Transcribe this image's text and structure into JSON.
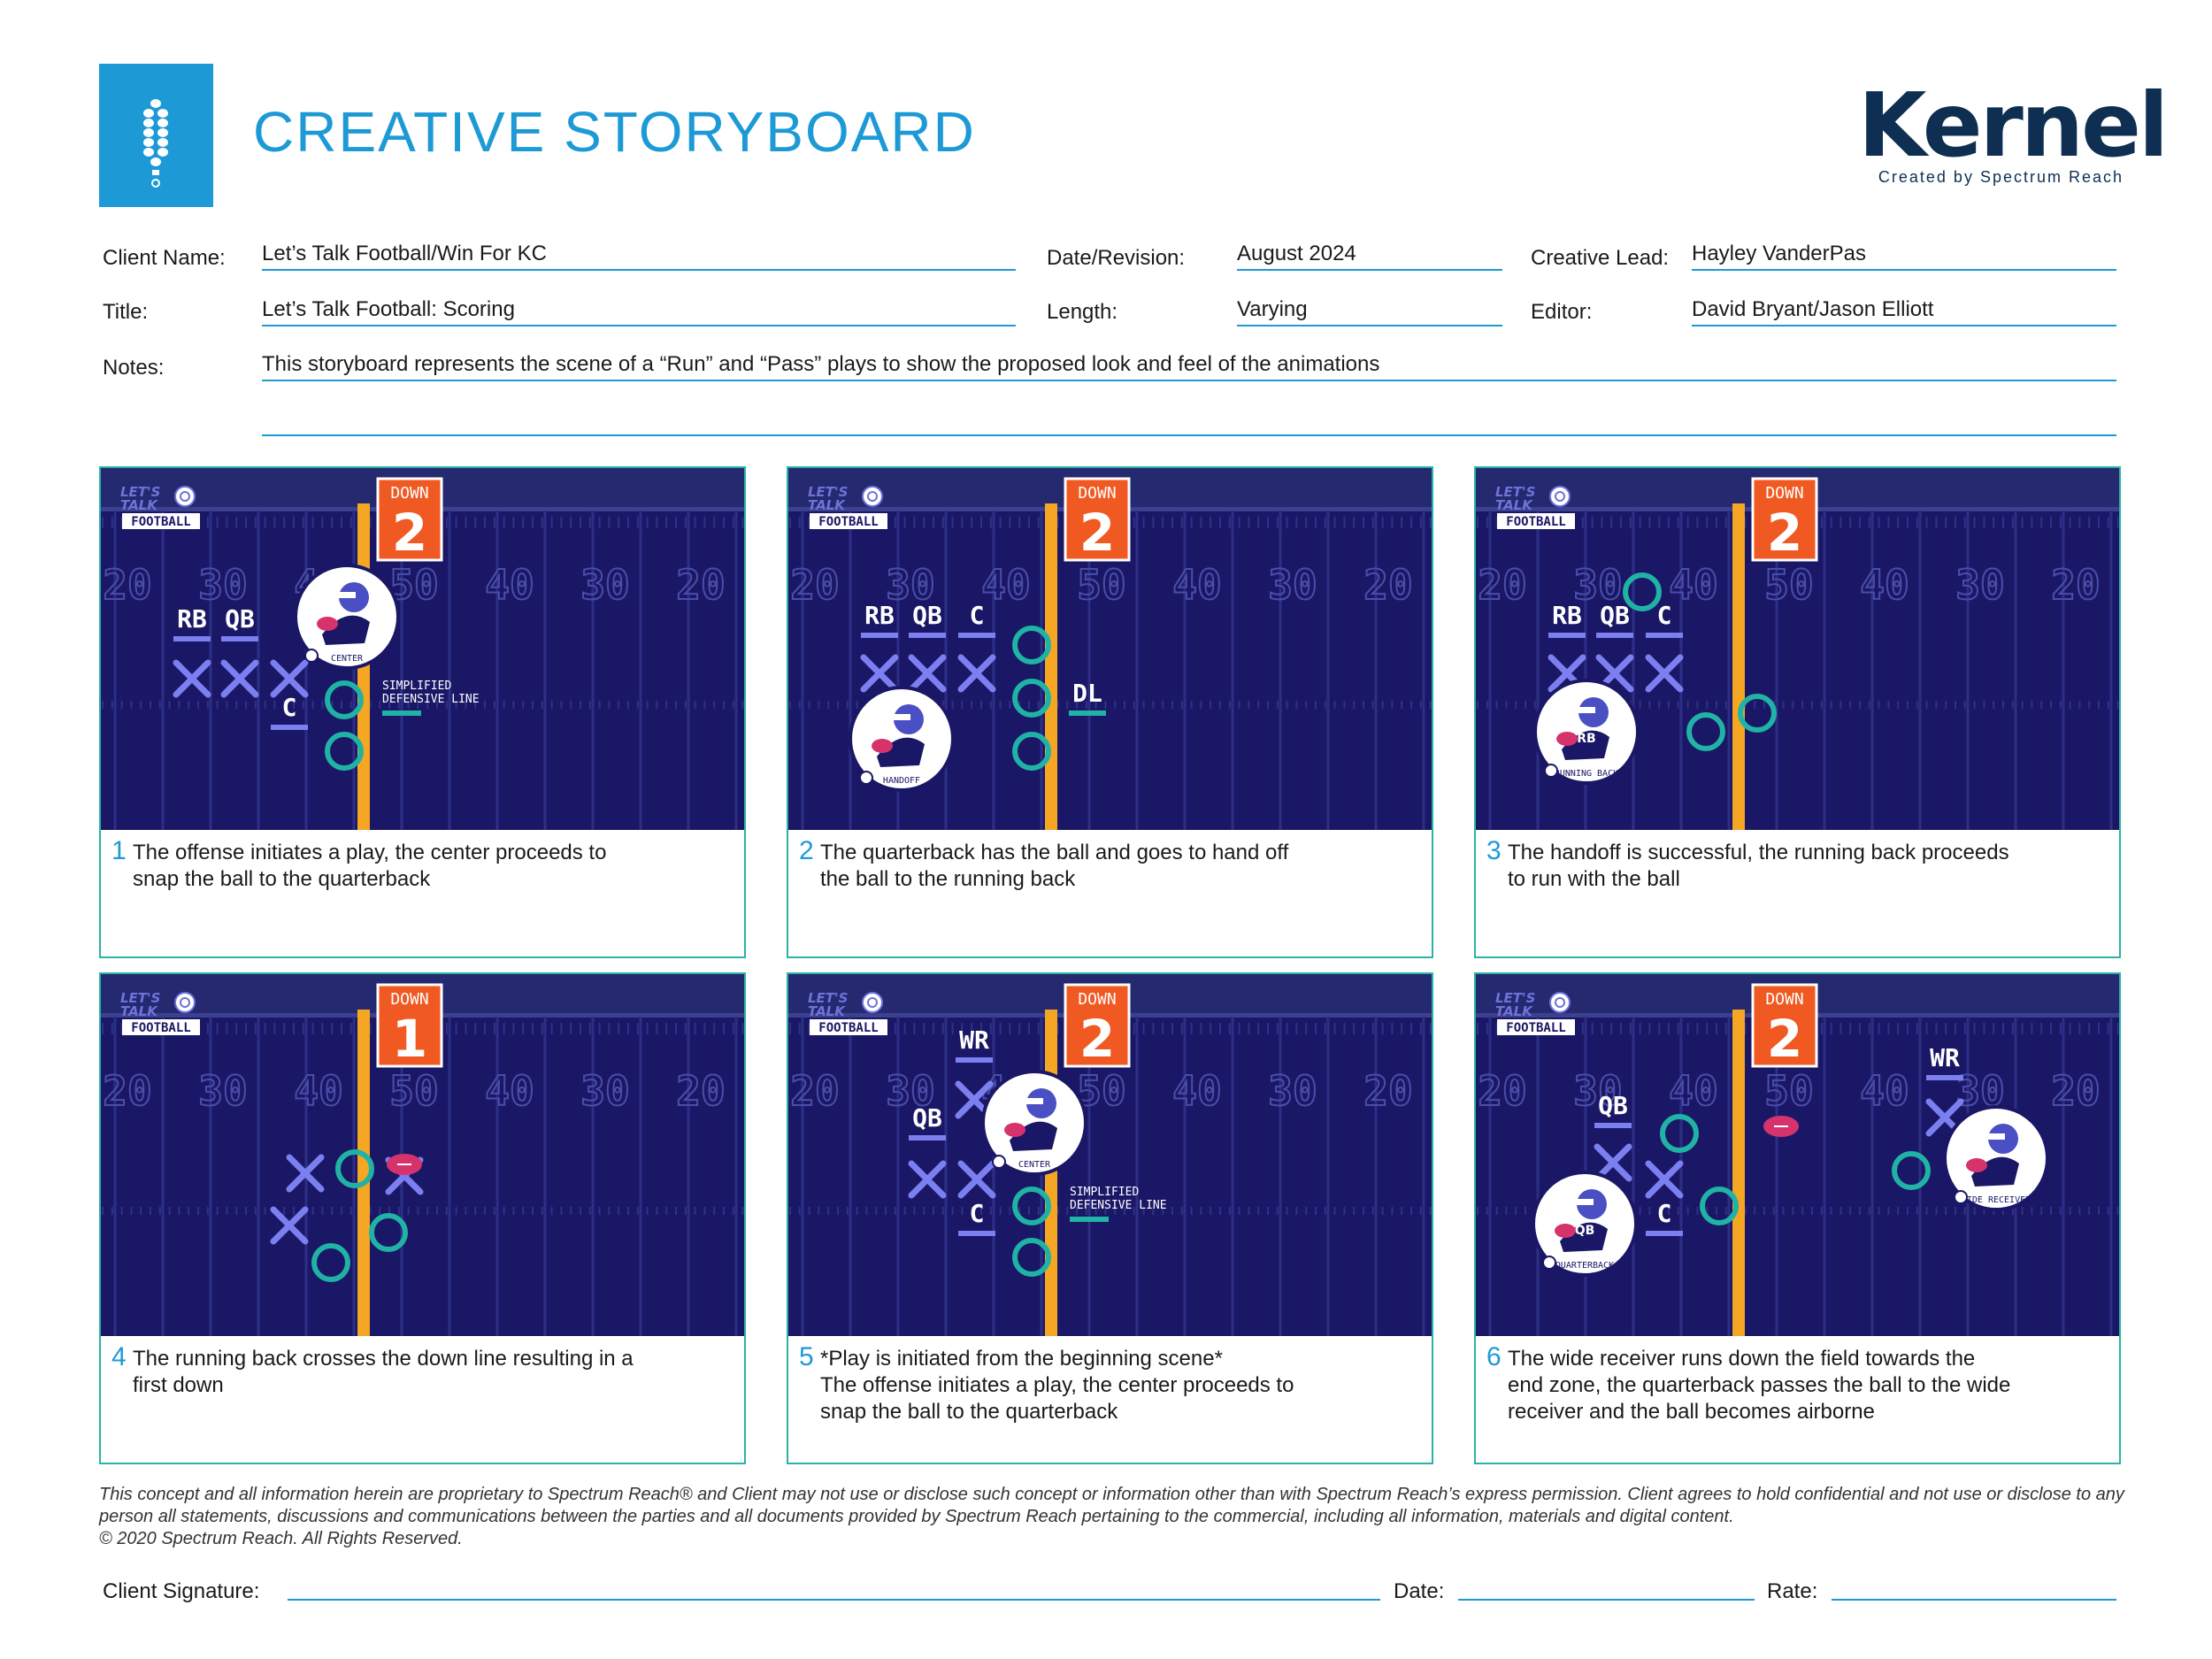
{
  "header": {
    "title": "CREATIVE STORYBOARD",
    "brand_name": "Kernel",
    "brand_subtitle": "Created by Spectrum Reach"
  },
  "fields": {
    "client_name_label": "Client Name:",
    "client_name": "Let’s Talk Football/Win For KC",
    "date_label": "Date/Revision:",
    "date": "August 2024",
    "lead_label": "Creative Lead:",
    "lead": "Hayley VanderPas",
    "title_label": "Title:",
    "title": "Let’s Talk Football: Scoring",
    "length_label": "Length:",
    "length": "Varying",
    "editor_label": "Editor:",
    "editor": "David Bryant/Jason Elliott",
    "notes_label": "Notes:",
    "notes": "This storyboard represents the scene of a “Run” and “Pass” plays to show the proposed look and feel of the animations"
  },
  "scene_common": {
    "show_logo": [
      "LET'S",
      "TALK",
      "FOOTBALL"
    ],
    "down_label": "DOWN",
    "yard_numbers": [
      "20",
      "30",
      "40",
      "50",
      "40",
      "30",
      "20"
    ]
  },
  "frames": [
    {
      "number": "1",
      "down": "2",
      "caption": "The offense initiates a play, the center proceeds to\nsnap the ball to the quarterback",
      "labels": [
        "RB",
        "QB",
        "C"
      ],
      "badge": "CENTER",
      "note": [
        "SIMPLIFIED",
        "DEFENSIVE LINE"
      ]
    },
    {
      "number": "2",
      "down": "2",
      "caption": "The quarterback has the ball and goes to hand off\nthe ball to the running back",
      "labels": [
        "RB",
        "QB",
        "C",
        "DL"
      ],
      "badge": "HANDOFF"
    },
    {
      "number": "3",
      "down": "2",
      "caption": "The handoff is successful, the running back proceeds\nto run with the ball",
      "labels": [
        "RB",
        "QB",
        "C"
      ],
      "badge": "RUNNING BACK",
      "badge_tag": "RB"
    },
    {
      "number": "4",
      "down": "1",
      "caption": "The running back crosses the down line resulting in a\nfirst down"
    },
    {
      "number": "5",
      "down": "2",
      "caption": "*Play is initiated from the beginning scene*\nThe offense initiates a play, the center proceeds to\nsnap the ball to the quarterback",
      "labels": [
        "WR",
        "QB",
        "C"
      ],
      "badge": "CENTER",
      "note": [
        "SIMPLIFIED",
        "DEFENSIVE LINE"
      ]
    },
    {
      "number": "6",
      "down": "2",
      "caption": "The wide receiver runs down the field towards the\nend zone, the quarterback passes the ball to the wide\nreceiver and the ball becomes airborne",
      "labels": [
        "QB",
        "C",
        "WR"
      ],
      "badge": "QUARTERBACK",
      "badge_tag": "QB",
      "badge2": "WIDE RECEIVER"
    }
  ],
  "footer": {
    "disclaimer": "This concept and all information herein are proprietary to Spectrum Reach® and Client may not use or disclose such concept or information other than with Spectrum Reach’s express permission. Client agrees to hold confidential and not use or disclose to any person all statements, discussions and communications between the parties and all documents provided by Spectrum Reach pertaining to the commercial, including all information, materials and digital content.",
    "copyright": "© 2020 Spectrum Reach. All Rights Reserved.",
    "signature_label": "Client Signature:",
    "date_label": "Date:",
    "rate_label": "Rate:"
  },
  "colors": {
    "accent": "#1d9ad6",
    "frame_border": "#2bb3a5",
    "field": "#1a1766",
    "down_line": "#f5a623",
    "down_box": "#f05a22",
    "offense": "#7b7ff0",
    "defense": "#20b3a5"
  }
}
